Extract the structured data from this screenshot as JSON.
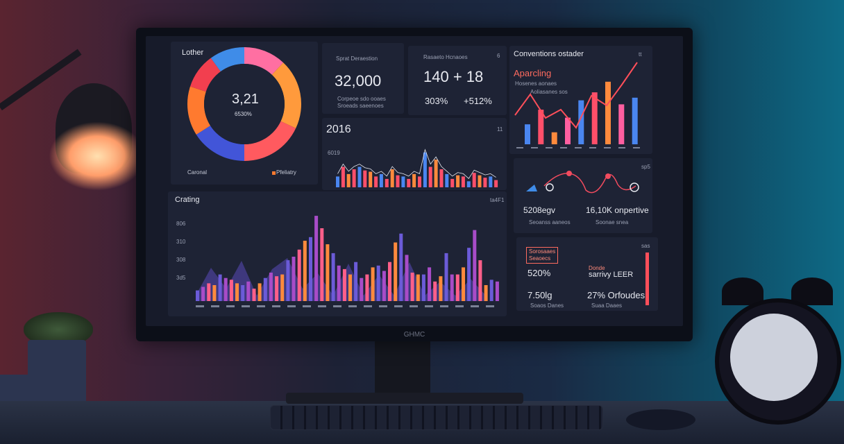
{
  "monitor": {
    "brand": "GHMC"
  },
  "panels": {
    "donut": {
      "title": "Lother",
      "value": "3,21",
      "sub": "6530%",
      "legend_left": "Caronal",
      "legend_right": "Pfeliatry",
      "slices": [
        {
          "value": 12,
          "color": "#ff6fa2"
        },
        {
          "value": 20,
          "color": "#ff9a3c"
        },
        {
          "value": 18,
          "color": "#ff5a5f"
        },
        {
          "value": 16,
          "color": "#4255d8"
        },
        {
          "value": 14,
          "color": "#ff7a2f"
        },
        {
          "value": 10,
          "color": "#f23f4f"
        },
        {
          "value": 10,
          "color": "#3f8ce8"
        }
      ]
    },
    "stat1": {
      "title": "Sprat Deraestion",
      "value": "32,000",
      "sub1": "Corpeoe sdo ooaes",
      "sub2": "Sroeads saeenoes"
    },
    "stat2": {
      "title": "Rasaeto Hcnaoes",
      "badge": "6",
      "value": "140 + 18",
      "pct1": "303%",
      "pct2": "+512%"
    },
    "bars2016": {
      "title": "2016",
      "badge": "11",
      "axis": "6019"
    },
    "conv": {
      "title": "Conventions ostader",
      "badge": "tt",
      "subtitle": "Aparcling",
      "line1": "Hosenes aonaes",
      "line2": "Aoliasanes sos"
    },
    "overlay": {
      "title": "Crating",
      "badge": "ta4F1",
      "yticks": [
        "806",
        "310",
        "308",
        "3d5"
      ]
    },
    "kpi": {
      "badge": "sp5",
      "a_value": "5208egv",
      "a_sub": "Seoanss aaneos",
      "b_value": "16,10K onpertive",
      "b_sub": "Soonae snea"
    },
    "summary": {
      "tag1": "Sorosaaes",
      "tag2": "Seaoecs",
      "badge": "sas",
      "r1_left": "520%",
      "r1_mid_label": "Donde",
      "r1_mid": "sarrivy LEER",
      "r2_left": "7.50lg",
      "r2_left_sub": "Soaos Danes",
      "r2_mid": "27% Orfoudes",
      "r2_mid_sub": "Suaa Daaes"
    }
  },
  "chart_data": [
    {
      "type": "bar",
      "title": "2016",
      "values": [
        18,
        34,
        22,
        30,
        34,
        28,
        26,
        18,
        22,
        14,
        30,
        20,
        18,
        14,
        22,
        18,
        58,
        34,
        46,
        30,
        22,
        14,
        20,
        18,
        10,
        24,
        20,
        16,
        18,
        12
      ],
      "colors": [
        "#4a86f0",
        "#ff4f6a",
        "#ff8a3d",
        "#ff4f6a"
      ]
    },
    {
      "type": "bar",
      "title": "Conventions ostader",
      "values": [
        30,
        52,
        18,
        40,
        66,
        78,
        94,
        60,
        70
      ],
      "colors": [
        "#4a86f0",
        "#ff4f6a",
        "#ff8a3d",
        "#ff5fa0"
      ]
    },
    {
      "type": "bar",
      "title": "Crating",
      "values": [
        12,
        16,
        20,
        18,
        30,
        26,
        24,
        20,
        18,
        22,
        14,
        20,
        26,
        32,
        28,
        30,
        46,
        50,
        58,
        68,
        72,
        96,
        82,
        64,
        54,
        40,
        36,
        30,
        44,
        26,
        30,
        38,
        40,
        34,
        44,
        66,
        76,
        52,
        32,
        30,
        30,
        38,
        22,
        28,
        54,
        30,
        30,
        38,
        60,
        80,
        46,
        18,
        24,
        22
      ],
      "colors": [
        "#6b5bd8",
        "#a84cc8",
        "#ff5f8a",
        "#ff8a3d"
      ]
    }
  ]
}
